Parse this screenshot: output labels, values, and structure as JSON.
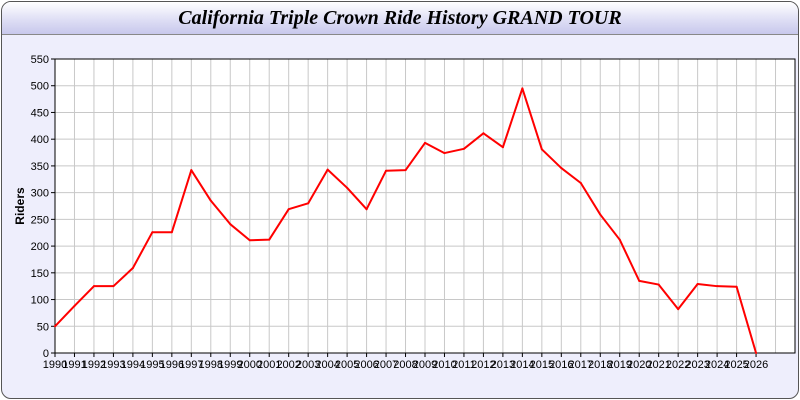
{
  "chart_data": {
    "type": "line",
    "title": "California Triple Crown Ride History GRAND TOUR",
    "xlabel": "",
    "ylabel": "Riders",
    "ylim": [
      0,
      550
    ],
    "xlim": [
      1990,
      2028
    ],
    "yticks": [
      0,
      50,
      100,
      150,
      200,
      250,
      300,
      350,
      400,
      450,
      500,
      550
    ],
    "grid": true,
    "line_color": "#ff0000",
    "x": [
      1990,
      1991,
      1992,
      1993,
      1994,
      1995,
      1996,
      1997,
      1998,
      1999,
      2000,
      2001,
      2002,
      2003,
      2004,
      2005,
      2006,
      2007,
      2008,
      2009,
      2010,
      2011,
      2012,
      2013,
      2014,
      2015,
      2016,
      2017,
      2018,
      2019,
      2020,
      2021,
      2022,
      2023,
      2024,
      2025,
      2026
    ],
    "values": [
      50,
      88,
      125,
      125,
      159,
      226,
      226,
      342,
      285,
      241,
      211,
      212,
      269,
      280,
      343,
      309,
      269,
      341,
      342,
      393,
      374,
      382,
      411,
      385,
      495,
      381,
      346,
      318,
      259,
      212,
      135,
      128,
      82,
      129,
      125,
      124,
      0
    ]
  }
}
